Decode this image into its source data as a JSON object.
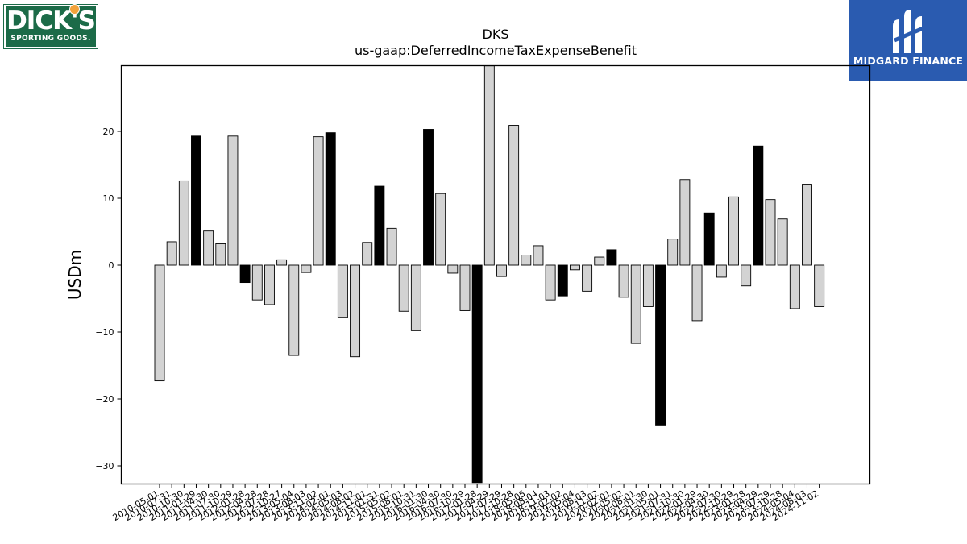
{
  "logos": {
    "left": {
      "line1": "DICK'S",
      "line2": "SPORTING GOODS."
    },
    "right": {
      "name": "MIDGARD FINANCE"
    }
  },
  "chart_data": {
    "type": "bar",
    "title": "DKS",
    "subtitle": "us-gaap:DeferredIncomeTaxExpenseBenefit",
    "ylabel": "USDm",
    "xlabel": "",
    "ylim": [
      -32.5,
      29.8
    ],
    "yticks": [
      -30,
      -20,
      -10,
      0,
      10,
      20
    ],
    "grid": false,
    "colors": {
      "annual": "#000000",
      "quarter": "#d3d3d3",
      "edge": "#000000"
    },
    "categories": [
      "2010-05-01",
      "2010-07-31",
      "2010-10-30",
      "2011-01-29",
      "2011-04-30",
      "2011-07-30",
      "2011-10-29",
      "2012-01-28",
      "2012-04-28",
      "2012-07-28",
      "2012-10-27",
      "2013-05-04",
      "2013-08-03",
      "2013-11-02",
      "2014-02-01",
      "2014-05-03",
      "2014-08-02",
      "2014-11-01",
      "2015-01-31",
      "2015-05-02",
      "2015-08-01",
      "2015-10-31",
      "2016-01-30",
      "2016-04-30",
      "2016-07-30",
      "2016-10-29",
      "2017-01-28",
      "2017-04-29",
      "2017-07-29",
      "2017-10-28",
      "2018-05-05",
      "2018-08-04",
      "2018-11-03",
      "2019-02-02",
      "2019-05-04",
      "2019-08-03",
      "2019-11-02",
      "2020-02-01",
      "2020-05-02",
      "2020-08-01",
      "2021-01-30",
      "2021-05-01",
      "2021-07-31",
      "2021-10-30",
      "2022-01-29",
      "2022-04-30",
      "2022-07-30",
      "2022-10-29",
      "2023-01-28",
      "2023-04-29",
      "2023-07-29",
      "2023-10-28",
      "2024-05-04",
      "2024-08-03",
      "2024-11-02"
    ],
    "values": [
      -17.3,
      3.5,
      12.6,
      19.3,
      5.1,
      3.2,
      19.3,
      -2.6,
      -5.2,
      -5.9,
      0.8,
      -13.5,
      -1.1,
      19.2,
      19.8,
      -7.8,
      -13.7,
      3.4,
      11.8,
      5.5,
      -6.9,
      -9.8,
      20.3,
      10.7,
      -1.2,
      -6.8,
      -32.5,
      29.8,
      -1.7,
      20.9,
      1.5,
      2.9,
      -5.2,
      -4.6,
      -0.7,
      -3.9,
      1.2,
      2.3,
      -4.8,
      -11.7,
      -6.2,
      -23.9,
      3.9,
      12.8,
      -8.3,
      7.8,
      -1.8,
      10.2,
      -3.1,
      17.8,
      9.8,
      6.9,
      -6.5,
      12.1,
      -6.2
    ],
    "annual": [
      false,
      false,
      false,
      true,
      false,
      false,
      false,
      true,
      false,
      false,
      false,
      false,
      false,
      false,
      true,
      false,
      false,
      false,
      true,
      false,
      false,
      false,
      true,
      false,
      false,
      false,
      true,
      false,
      false,
      false,
      false,
      false,
      false,
      true,
      false,
      false,
      false,
      true,
      false,
      false,
      false,
      true,
      false,
      false,
      false,
      true,
      false,
      false,
      false,
      true,
      false,
      false,
      false,
      false,
      false
    ]
  }
}
